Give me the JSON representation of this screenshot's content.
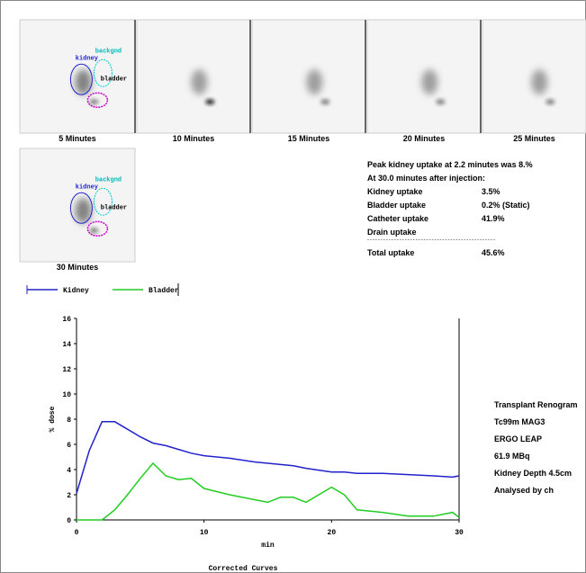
{
  "frames": [
    "5 Minutes",
    "10 Minutes",
    "15 Minutes",
    "20 Minutes",
    "25 Minutes",
    "30 Minutes"
  ],
  "roi_labels": [
    "backgnd",
    "kidney",
    "bladder"
  ],
  "results": {
    "peak": "Peak kidney uptake at 2.2 minutes was 8.%",
    "at": "At 30.0 minutes after injection:",
    "rows": [
      [
        "Kidney uptake",
        "3.5%"
      ],
      [
        "Bladder uptake",
        "0.2%  (Static)"
      ],
      [
        "Catheter uptake",
        "41.9%"
      ],
      [
        "Drain uptake"
      ]
    ],
    "separator": "------------------------------------------------",
    "total": [
      "Total uptake",
      "45.6%"
    ]
  },
  "info": [
    "Transplant Renogram",
    "Tc99m MAG3",
    "ERGO LEAP",
    "61.9 MBq",
    "Kidney Depth 4.5cm",
    "Analysed by ch"
  ],
  "chart_data": {
    "type": "line",
    "x_label": "min",
    "y_label": "% dose",
    "caption": "Corrected Curves",
    "x": [
      0,
      1,
      2,
      3,
      4,
      5,
      6,
      7,
      8,
      9,
      10,
      12,
      14,
      15,
      16,
      17,
      18,
      20,
      21,
      22,
      24,
      26,
      28,
      29.5,
      30
    ],
    "series": [
      {
        "name": "Kidney",
        "color": "#2222cc",
        "values": [
          2.1,
          5.5,
          7.8,
          7.8,
          7.2,
          6.6,
          6.1,
          5.9,
          5.6,
          5.3,
          5.1,
          4.9,
          4.6,
          4.5,
          4.4,
          4.3,
          4.1,
          3.8,
          3.8,
          3.7,
          3.7,
          3.6,
          3.5,
          3.4,
          3.5
        ]
      },
      {
        "name": "Bladder",
        "color": "#22cc22",
        "values": [
          0,
          0,
          0,
          0.8,
          2.0,
          3.3,
          4.5,
          3.5,
          3.2,
          3.3,
          2.5,
          2.0,
          1.6,
          1.4,
          1.8,
          1.8,
          1.4,
          2.6,
          2.0,
          0.8,
          0.6,
          0.3,
          0.3,
          0.6,
          0.2
        ]
      }
    ],
    "xlim": [
      0,
      30
    ],
    "ylim": [
      0,
      16
    ],
    "xticks": [
      0,
      10,
      20,
      30
    ],
    "yticks": [
      0,
      2,
      4,
      6,
      8,
      10,
      12,
      14,
      16
    ]
  }
}
